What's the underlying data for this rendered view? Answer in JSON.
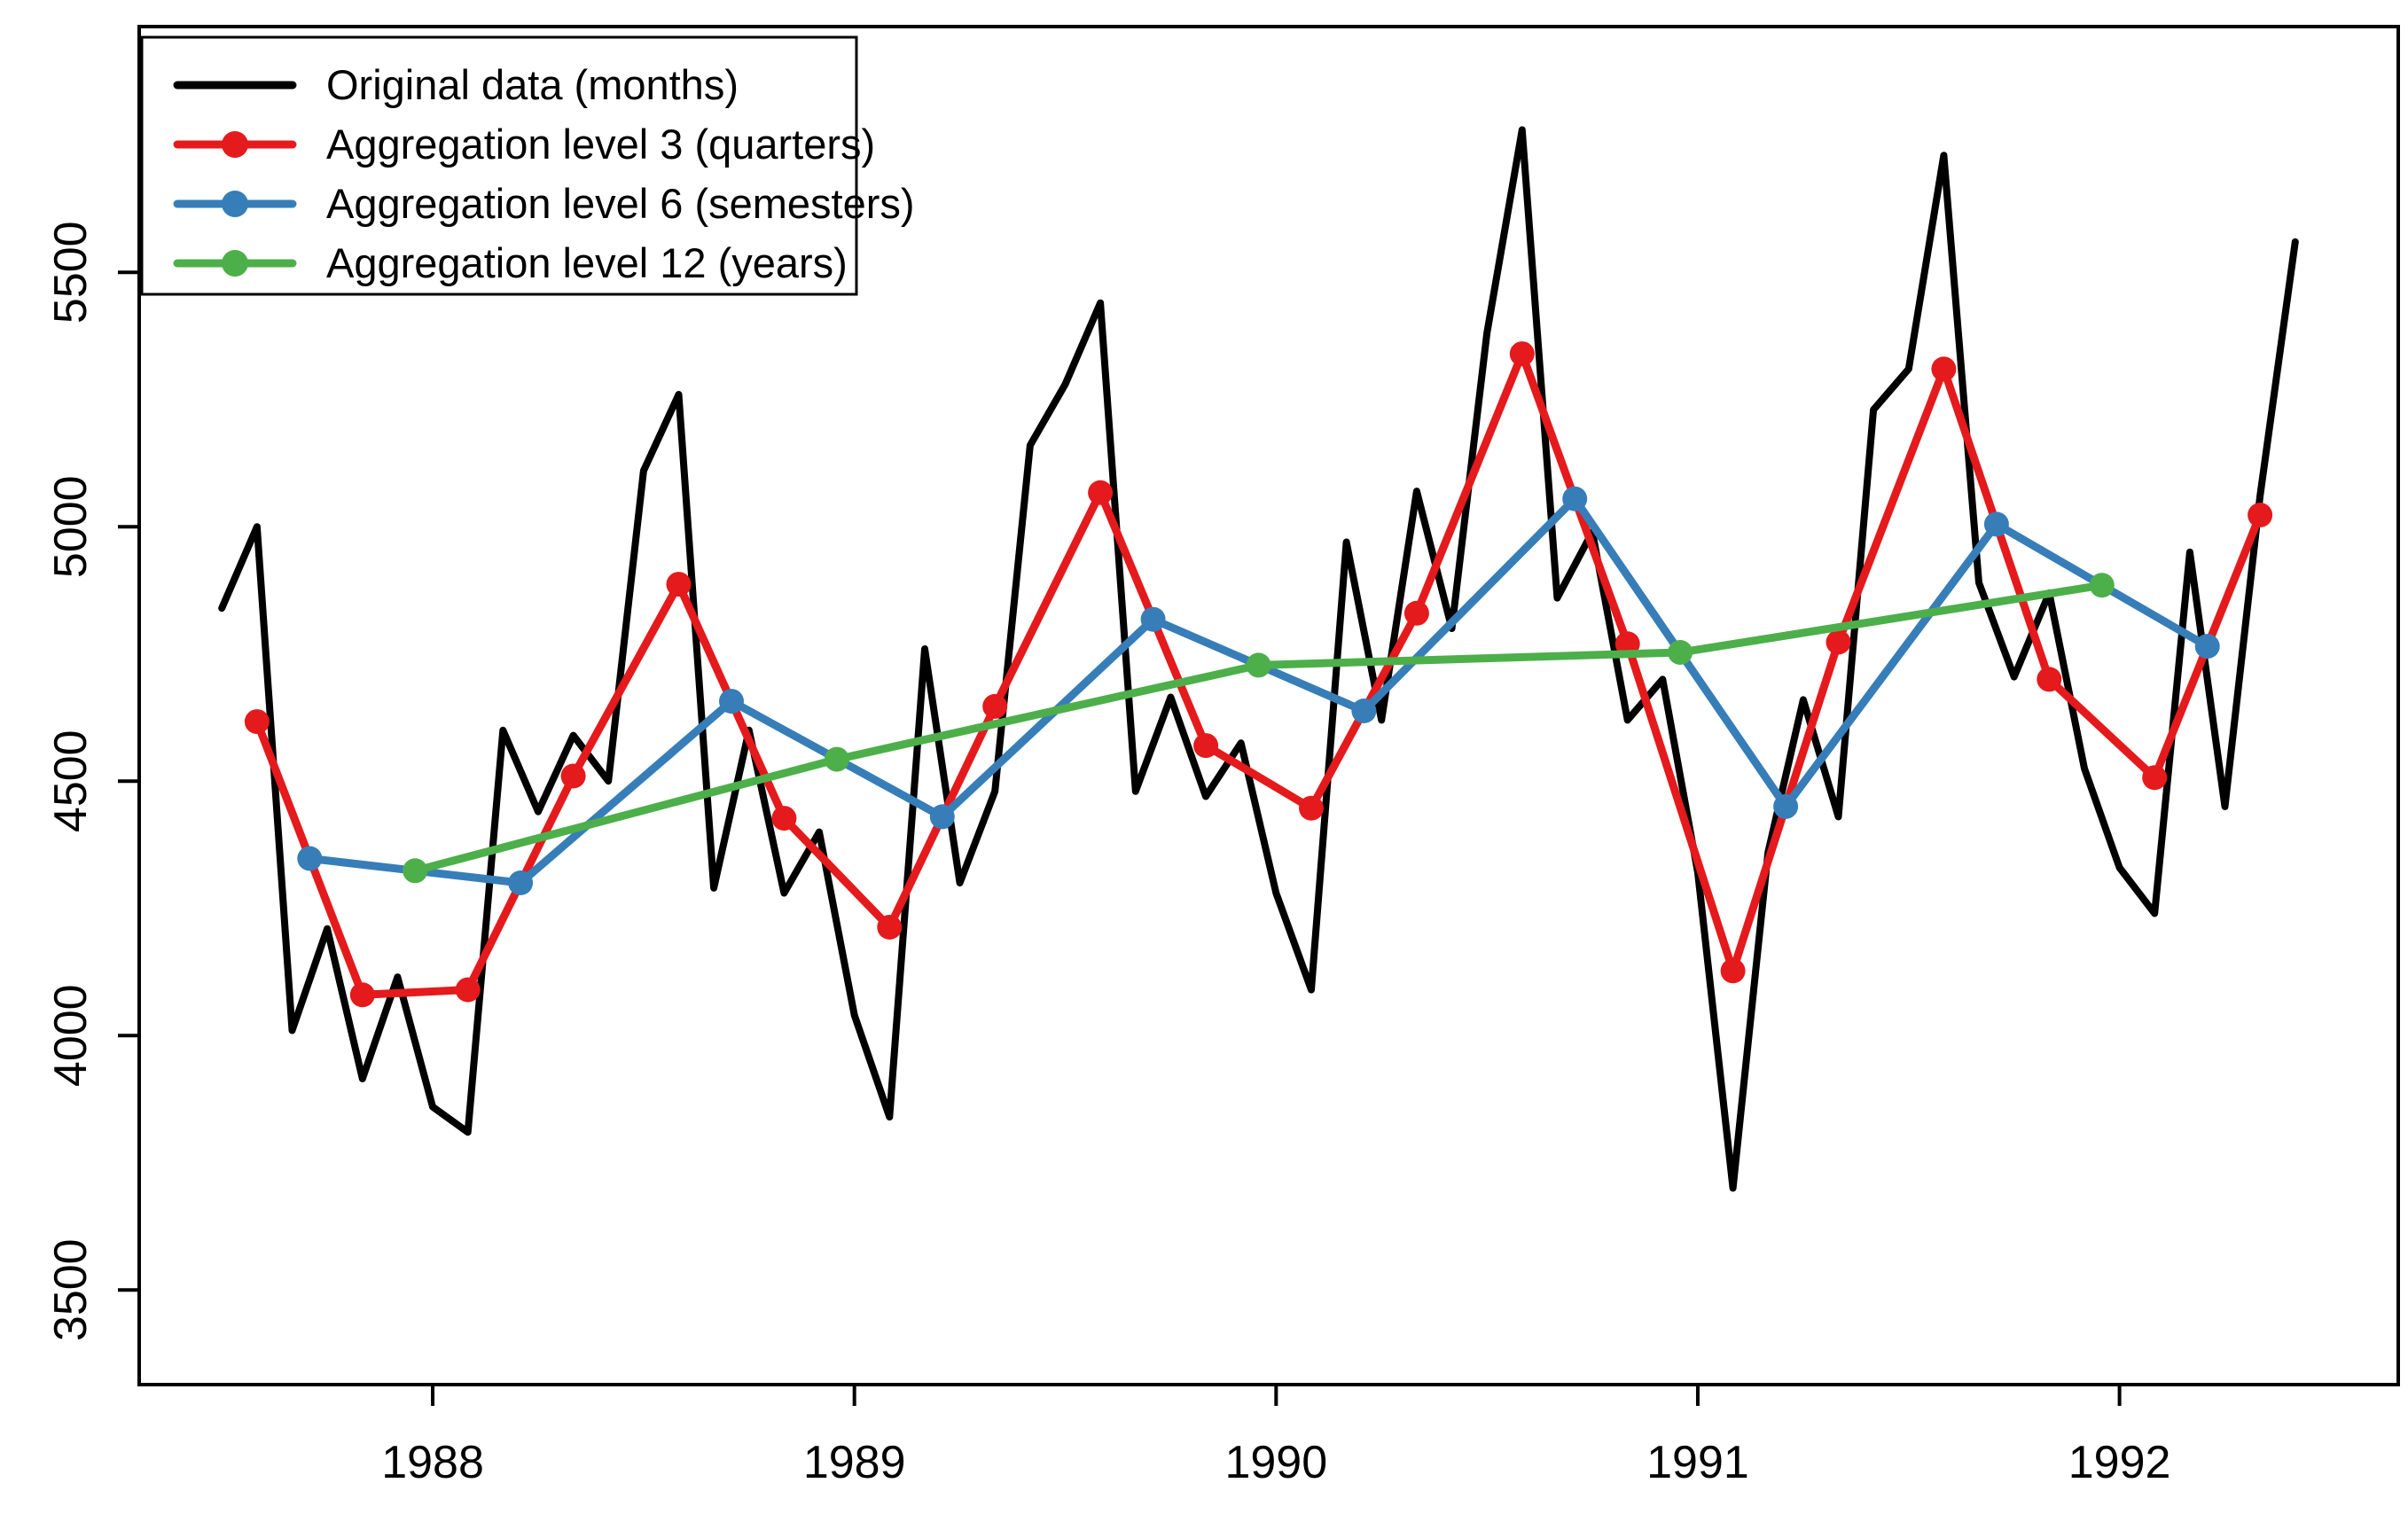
{
  "chart_data": {
    "type": "line",
    "title": "",
    "xlabel": "",
    "ylabel": "",
    "grid": false,
    "background": "#ffffff",
    "box_color": "#000000",
    "legend_position": "top-left",
    "x_axis": {
      "ticks": [
        1988,
        1989,
        1990,
        1991,
        1992
      ],
      "tick_labels": [
        "1988",
        "1989",
        "1990",
        "1991",
        "1992"
      ],
      "range": [
        1987.304,
        1992.661
      ]
    },
    "y_axis": {
      "ticks": [
        3500,
        4000,
        4500,
        5000,
        5500
      ],
      "tick_labels": [
        "3500",
        "4000",
        "4500",
        "5000",
        "5500"
      ],
      "range": [
        3314,
        5983
      ]
    },
    "series": [
      {
        "name": "Original data (months)",
        "color": "#000000",
        "marker": false,
        "line_width": 8,
        "start": 1987.5,
        "step": 0.083333,
        "values": [
          4840,
          5000,
          4010,
          4210,
          3915,
          4115,
          3860,
          3810,
          4600,
          4440,
          4590,
          4500,
          5110,
          5260,
          4290,
          4600,
          4280,
          4400,
          4040,
          3840,
          4760,
          4300,
          4480,
          5160,
          5280,
          5440,
          4480,
          4665,
          4470,
          4575,
          4280,
          4090,
          4970,
          4620,
          5070,
          4800,
          5380,
          5780,
          4860,
          4990,
          4620,
          4700,
          4320,
          3700,
          4360,
          4660,
          4430,
          5230,
          5310,
          5730,
          4890,
          4705,
          4870,
          4525,
          4330,
          4240,
          4950,
          4450,
          5060,
          5560
        ]
      },
      {
        "name": "Aggregation level 3 (quarters)",
        "color": "#E41A1C",
        "marker": true,
        "line_width": 9,
        "start": 1987.583333,
        "step": 0.25,
        "values": [
          4617,
          4080,
          4090,
          4510,
          4887,
          4427,
          4213,
          4647,
          5067,
          4570,
          4447,
          4830,
          5340,
          4770,
          4127,
          4773,
          5310,
          4700,
          4507,
          5023
        ]
      },
      {
        "name": "Aggregation level 6 (semesters)",
        "color": "#377EB8",
        "marker": true,
        "line_width": 9,
        "start": 1987.708333,
        "step": 0.5,
        "values": [
          4348,
          4300,
          4657,
          4430,
          4818,
          4638,
          5055,
          4450,
          5005,
          4765
        ]
      },
      {
        "name": "Aggregation level 12 (years)",
        "color": "#4DAF4A",
        "marker": true,
        "line_width": 9,
        "start": 1987.958333,
        "step": 1.0,
        "values": [
          4324,
          4543,
          4728,
          4753,
          4885
        ]
      }
    ]
  },
  "legend": {
    "items": [
      {
        "label": "Original data (months)",
        "color": "#000000",
        "marker": false
      },
      {
        "label": "Aggregation level 3 (quarters)",
        "color": "#E41A1C",
        "marker": true
      },
      {
        "label": "Aggregation level 6 (semesters)",
        "color": "#377EB8",
        "marker": true
      },
      {
        "label": "Aggregation level 12 (years)",
        "color": "#4DAF4A",
        "marker": true
      }
    ]
  }
}
